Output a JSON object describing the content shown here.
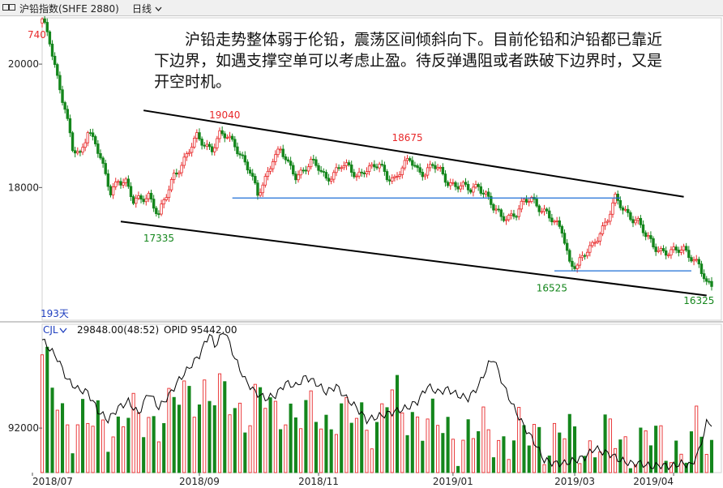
{
  "title_bar": {
    "instrument": "沪铅指数(SHFE 2880)",
    "period_label": "日线",
    "period_icon": "chevron-down-icon",
    "window_icon": "window-restore-icon"
  },
  "annotation": "沪铅走势整体弱于伦铅，震荡区间倾斜向下。目前伦铅和沪铅都已靠近下边界，如遇支撑空单可以考虑止盈。待反弹遇阻或者跌破下边界时，又是开空时机。",
  "colors": {
    "up": "#e8292a",
    "down": "#14861c",
    "hline": "#1e6fd6",
    "channel": "#000000",
    "ma": "#000000",
    "label_high": "#e8292a",
    "label_low": "#14861c",
    "label_days": "#1f3fbf"
  },
  "chart_data": [
    {
      "type": "candlestick",
      "days_label": "193天",
      "ylim": [
        15850,
        20750
      ],
      "y_ticks": [
        {
          "value": 20000,
          "label": "20000"
        },
        {
          "value": 18000,
          "label": "18000"
        }
      ],
      "top_label": "740",
      "price_labels": [
        {
          "text": "19040",
          "kind": "high",
          "x": 72,
          "y": 19040
        },
        {
          "text": "18675",
          "kind": "high",
          "x": 144,
          "y": 18675
        },
        {
          "text": "17335",
          "kind": "low",
          "x": 46,
          "y": 17335
        },
        {
          "text": "16525",
          "kind": "low",
          "x": 201,
          "y": 16525
        },
        {
          "text": "16325",
          "kind": "low",
          "x": 259,
          "y": 16325
        }
      ],
      "trendlines": [
        {
          "name": "upper-channel",
          "x1": 40,
          "y1": 19250,
          "x2": 253,
          "y2": 17850
        },
        {
          "name": "lower-channel",
          "x1": 31,
          "y1": 17450,
          "x2": 262,
          "y2": 16250
        }
      ],
      "hlines": [
        {
          "name": "resistance",
          "x1": 75,
          "x2": 228,
          "y": 17830
        },
        {
          "name": "support",
          "x1": 202,
          "x2": 256,
          "y": 16650
        }
      ],
      "anchors": [
        [
          0,
          20700
        ],
        [
          3,
          20350
        ],
        [
          6,
          19800
        ],
        [
          9,
          19300
        ],
        [
          12,
          18600
        ],
        [
          15,
          18500
        ],
        [
          18,
          18950
        ],
        [
          21,
          18750
        ],
        [
          24,
          18300
        ],
        [
          27,
          17900
        ],
        [
          30,
          18150
        ],
        [
          33,
          18100
        ],
        [
          36,
          17750
        ],
        [
          39,
          17800
        ],
        [
          42,
          17900
        ],
        [
          46,
          17550
        ],
        [
          49,
          17850
        ],
        [
          52,
          18200
        ],
        [
          55,
          18400
        ],
        [
          58,
          18600
        ],
        [
          61,
          18800
        ],
        [
          64,
          18700
        ],
        [
          67,
          18650
        ],
        [
          70,
          18850
        ],
        [
          73,
          18800
        ],
        [
          76,
          18700
        ],
        [
          79,
          18500
        ],
        [
          82,
          18250
        ],
        [
          85,
          17850
        ],
        [
          88,
          18150
        ],
        [
          91,
          18500
        ],
        [
          94,
          18600
        ],
        [
          97,
          18350
        ],
        [
          100,
          18200
        ],
        [
          103,
          18300
        ],
        [
          106,
          18400
        ],
        [
          109,
          18300
        ],
        [
          112,
          18150
        ],
        [
          115,
          18250
        ],
        [
          118,
          18350
        ],
        [
          121,
          18300
        ],
        [
          124,
          18200
        ],
        [
          127,
          18300
        ],
        [
          130,
          18300
        ],
        [
          133,
          18350
        ],
        [
          136,
          18200
        ],
        [
          139,
          18150
        ],
        [
          142,
          18300
        ],
        [
          145,
          18450
        ],
        [
          148,
          18300
        ],
        [
          151,
          18250
        ],
        [
          154,
          18350
        ],
        [
          157,
          18250
        ],
        [
          160,
          18100
        ],
        [
          163,
          18050
        ],
        [
          166,
          18000
        ],
        [
          169,
          17950
        ],
        [
          172,
          18050
        ],
        [
          175,
          17900
        ],
        [
          178,
          17650
        ],
        [
          181,
          17500
        ],
        [
          184,
          17550
        ],
        [
          187,
          17600
        ],
        [
          190,
          17750
        ],
        [
          193,
          17800
        ],
        [
          196,
          17700
        ],
        [
          199,
          17600
        ],
        [
          202,
          17400
        ],
        [
          205,
          17300
        ],
        [
          208,
          16800
        ],
        [
          211,
          16750
        ],
        [
          214,
          16900
        ],
        [
          217,
          17050
        ],
        [
          220,
          17300
        ],
        [
          223,
          17500
        ],
        [
          226,
          17800
        ],
        [
          229,
          17650
        ],
        [
          232,
          17550
        ],
        [
          235,
          17450
        ],
        [
          238,
          17200
        ],
        [
          241,
          17050
        ],
        [
          244,
          17000
        ],
        [
          247,
          16950
        ],
        [
          250,
          16950
        ],
        [
          253,
          17000
        ],
        [
          256,
          16900
        ],
        [
          259,
          16750
        ],
        [
          262,
          16400
        ]
      ],
      "x_axis_labels": [
        {
          "x": 0,
          "label": "2018/07"
        },
        {
          "x": 62,
          "label": "2018/09"
        },
        {
          "x": 109,
          "label": "2018/11"
        },
        {
          "x": 162,
          "label": "2019/01"
        },
        {
          "x": 210,
          "label": "2019/03"
        },
        {
          "x": 249,
          "label": "2019/04"
        }
      ],
      "bar_count": 265
    },
    {
      "type": "bar+line",
      "indicator_label": "CJL",
      "indicator_icon": "chevron-down-icon",
      "volume_text": "29848.00(48:52)",
      "opid_text": "OPID 95442.00",
      "ylim": [
        20000,
        260000
      ],
      "y_ticks": [
        {
          "value": 92000,
          "label": "92000"
        }
      ],
      "oi_anchors": [
        [
          0,
          235000
        ],
        [
          6,
          205000
        ],
        [
          10,
          170000
        ],
        [
          14,
          155000
        ],
        [
          18,
          150000
        ],
        [
          22,
          120000
        ],
        [
          26,
          105000
        ],
        [
          30,
          125000
        ],
        [
          34,
          135000
        ],
        [
          38,
          115000
        ],
        [
          42,
          150000
        ],
        [
          46,
          125000
        ],
        [
          50,
          145000
        ],
        [
          54,
          170000
        ],
        [
          58,
          190000
        ],
        [
          62,
          210000
        ],
        [
          66,
          245000
        ],
        [
          68,
          225000
        ],
        [
          72,
          250000
        ],
        [
          76,
          205000
        ],
        [
          80,
          170000
        ],
        [
          84,
          150000
        ],
        [
          88,
          140000
        ],
        [
          92,
          145000
        ],
        [
          96,
          165000
        ],
        [
          100,
          160000
        ],
        [
          104,
          175000
        ],
        [
          108,
          165000
        ],
        [
          112,
          150000
        ],
        [
          116,
          160000
        ],
        [
          120,
          140000
        ],
        [
          124,
          125000
        ],
        [
          128,
          105000
        ],
        [
          132,
          110000
        ],
        [
          136,
          115000
        ],
        [
          140,
          120000
        ],
        [
          144,
          125000
        ],
        [
          148,
          135000
        ],
        [
          152,
          160000
        ],
        [
          156,
          150000
        ],
        [
          160,
          155000
        ],
        [
          164,
          145000
        ],
        [
          168,
          140000
        ],
        [
          172,
          160000
        ],
        [
          176,
          195000
        ],
        [
          178,
          205000
        ],
        [
          182,
          160000
        ],
        [
          186,
          125000
        ],
        [
          190,
          95000
        ],
        [
          194,
          70000
        ],
        [
          198,
          40000
        ],
        [
          202,
          35000
        ],
        [
          206,
          35000
        ],
        [
          210,
          40000
        ],
        [
          214,
          45000
        ],
        [
          218,
          60000
        ],
        [
          220,
          55000
        ],
        [
          224,
          50000
        ],
        [
          228,
          40000
        ],
        [
          232,
          35000
        ],
        [
          236,
          35000
        ],
        [
          240,
          30000
        ],
        [
          244,
          32000
        ],
        [
          248,
          30000
        ],
        [
          252,
          35000
        ],
        [
          256,
          32000
        ],
        [
          259,
          55000
        ],
        [
          262,
          100000
        ]
      ],
      "vol_anchors": [
        [
          0,
          200000
        ],
        [
          4,
          150000
        ],
        [
          8,
          115000
        ],
        [
          12,
          100000
        ],
        [
          16,
          110000
        ],
        [
          20,
          90000
        ],
        [
          24,
          100000
        ],
        [
          28,
          90000
        ],
        [
          32,
          120000
        ],
        [
          36,
          100000
        ],
        [
          40,
          95000
        ],
        [
          44,
          110000
        ],
        [
          48,
          120000
        ],
        [
          52,
          130000
        ],
        [
          56,
          135000
        ],
        [
          60,
          150000
        ],
        [
          64,
          160000
        ],
        [
          68,
          140000
        ],
        [
          72,
          135000
        ],
        [
          76,
          130000
        ],
        [
          80,
          120000
        ],
        [
          84,
          135000
        ],
        [
          88,
          130000
        ],
        [
          92,
          110000
        ],
        [
          96,
          135000
        ],
        [
          100,
          110000
        ],
        [
          104,
          105000
        ],
        [
          108,
          115000
        ],
        [
          112,
          105000
        ],
        [
          116,
          120000
        ],
        [
          120,
          105000
        ],
        [
          124,
          100000
        ],
        [
          128,
          110000
        ],
        [
          132,
          100000
        ],
        [
          136,
          140000
        ],
        [
          140,
          130000
        ],
        [
          144,
          110000
        ],
        [
          148,
          120000
        ],
        [
          152,
          100000
        ],
        [
          156,
          90000
        ],
        [
          160,
          85000
        ],
        [
          164,
          80000
        ],
        [
          168,
          85000
        ],
        [
          172,
          80000
        ],
        [
          176,
          80000
        ],
        [
          180,
          80000
        ],
        [
          184,
          75000
        ],
        [
          188,
          80000
        ],
        [
          192,
          75000
        ],
        [
          196,
          90000
        ],
        [
          200,
          70000
        ],
        [
          204,
          80000
        ],
        [
          208,
          75000
        ],
        [
          212,
          70000
        ],
        [
          216,
          65000
        ],
        [
          220,
          70000
        ],
        [
          224,
          75000
        ],
        [
          228,
          70000
        ],
        [
          232,
          65000
        ],
        [
          236,
          70000
        ],
        [
          240,
          70000
        ],
        [
          244,
          65000
        ],
        [
          248,
          70000
        ],
        [
          252,
          60000
        ],
        [
          256,
          55000
        ],
        [
          259,
          100000
        ],
        [
          262,
          60000
        ]
      ]
    }
  ]
}
